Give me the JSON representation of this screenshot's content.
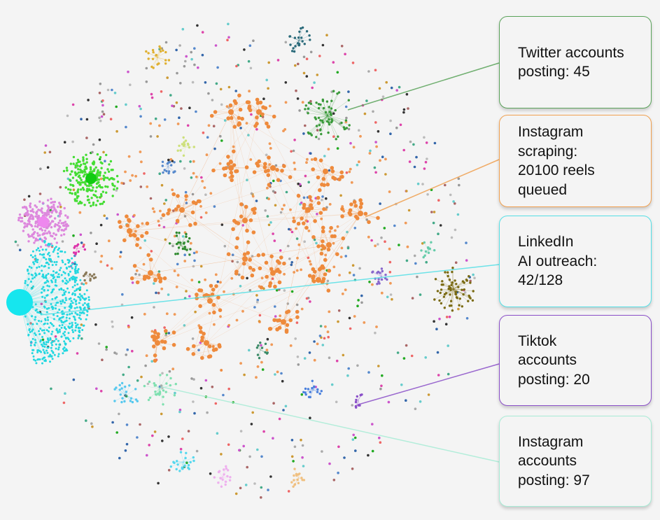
{
  "callouts": [
    {
      "id": "twitter",
      "text": "Twitter accounts\nposting: 45",
      "color": "#5aa35a"
    },
    {
      "id": "instagram-scraping",
      "text": "Instagram\nscraping:\n20100 reels\nqueued",
      "color": "#f0a050"
    },
    {
      "id": "linkedin",
      "text": "LinkedIn\nAI outreach:\n42/128",
      "color": "#55e0e6"
    },
    {
      "id": "tiktok",
      "text": "Tiktok\naccounts\nposting: 20",
      "color": "#8a4fc8"
    },
    {
      "id": "instagram-posting",
      "text": "Instagram\naccounts\nposting: 97",
      "color": "#a8ecd6"
    }
  ],
  "colors": {
    "background": "#f4f4f4",
    "main_cluster": "#ee8a3c",
    "twitter_cluster": "#3a9a3a",
    "linkedin_cluster": "#22d7e0",
    "tiktok_cluster": "#8a4fc8",
    "instagram_posting_cluster": "#7fe0b0",
    "green_hub": "#44dd33",
    "pink_hub": "#dd88dd",
    "olive_cluster": "#7a6a12"
  }
}
